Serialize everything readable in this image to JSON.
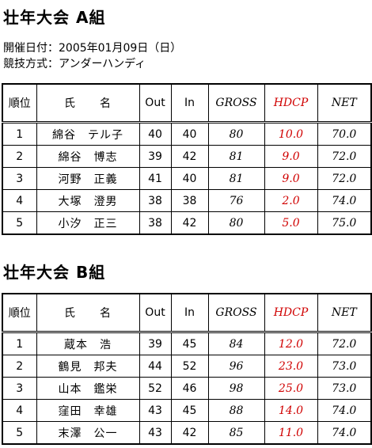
{
  "sections": [
    {
      "title": "壮年大会 A組",
      "info": [
        "開催日付：2005年01月09日（日）",
        "競技方式：アンダーハンディ"
      ],
      "table": {
        "header": [
          "順位",
          "氏　　名",
          "Out",
          "In",
          "GROSS",
          "HDCP",
          "NET"
        ],
        "rows": [
          [
            "1",
            "綿谷　テル子",
            "40",
            "40",
            "80",
            "10.0",
            "70.0"
          ],
          [
            "2",
            "綿谷　博志",
            "39",
            "42",
            "81",
            "9.0",
            "72.0"
          ],
          [
            "3",
            "河野　正義",
            "41",
            "40",
            "81",
            "9.0",
            "72.0"
          ],
          [
            "4",
            "大塚　澄男",
            "38",
            "38",
            "76",
            "2.0",
            "74.0"
          ],
          [
            "5",
            "小汐　正三",
            "38",
            "42",
            "80",
            "5.0",
            "75.0"
          ]
        ]
      }
    },
    {
      "title": "壮年大会 B組",
      "table": {
        "header": [
          "順位",
          "氏　　名",
          "Out",
          "In",
          "GROSS",
          "HDCP",
          "NET"
        ],
        "rows": [
          [
            "1",
            "蔵本　浩",
            "39",
            "45",
            "84",
            "12.0",
            "72.0"
          ],
          [
            "2",
            "鶴見　邦夫",
            "44",
            "52",
            "96",
            "23.0",
            "73.0"
          ],
          [
            "3",
            "山本　鑑栄",
            "52",
            "46",
            "98",
            "25.0",
            "73.0"
          ],
          [
            "4",
            "窪田　幸雄",
            "43",
            "45",
            "88",
            "14.0",
            "74.0"
          ],
          [
            "5",
            "末澤　公一",
            "43",
            "42",
            "85",
            "11.0",
            "74.0"
          ]
        ]
      }
    }
  ]
}
